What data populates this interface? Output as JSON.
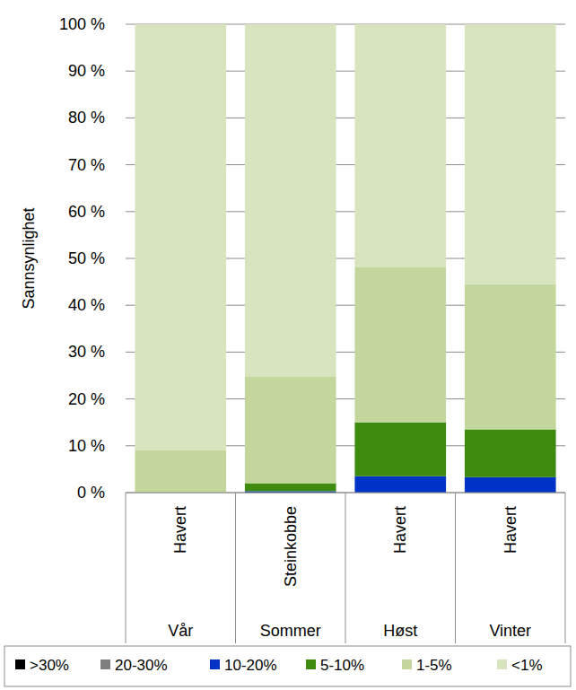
{
  "chart_data": {
    "type": "bar",
    "stacked": true,
    "grid": true,
    "legend": "bottom",
    "y_label": "Sannsynlighet",
    "categories": [
      "Havert",
      "Steinkobbe",
      "Havert",
      "Havert"
    ],
    "category_groups": [
      "Vår",
      "Sommer",
      "Høst",
      "Vinter"
    ],
    "ylim": [
      0,
      100
    ],
    "yticks": [
      {
        "value": 0,
        "label": "0 %"
      },
      {
        "value": 10,
        "label": "10 %"
      },
      {
        "value": 20,
        "label": "20 %"
      },
      {
        "value": 30,
        "label": "30 %"
      },
      {
        "value": 40,
        "label": "40 %"
      },
      {
        "value": 50,
        "label": "50 %"
      },
      {
        "value": 60,
        "label": "60 %"
      },
      {
        "value": 70,
        "label": "70 %"
      },
      {
        "value": 80,
        "label": "80 %"
      },
      {
        "value": 90,
        "label": "90 %"
      },
      {
        "value": 100,
        "label": "100 %"
      }
    ],
    "series": [
      {
        "name": ">30%",
        "color": "#000000",
        "values": [
          0,
          0,
          0,
          0
        ]
      },
      {
        "name": "20-30%",
        "color": "#7f7f7f",
        "values": [
          0,
          0,
          0,
          0
        ]
      },
      {
        "name": "10-20%",
        "color": "#0033c6",
        "values": [
          0,
          0.3,
          3.5,
          3.3
        ]
      },
      {
        "name": "5-10%",
        "color": "#3e8b10",
        "values": [
          0,
          1.7,
          11.5,
          10.2
        ]
      },
      {
        "name": "1-5%",
        "color": "#c3d69b",
        "values": [
          9,
          22.7,
          33.2,
          31
        ]
      },
      {
        "name": "<1%",
        "color": "#d7e4bd",
        "values": [
          91,
          75.3,
          51.8,
          55.5
        ]
      }
    ]
  }
}
